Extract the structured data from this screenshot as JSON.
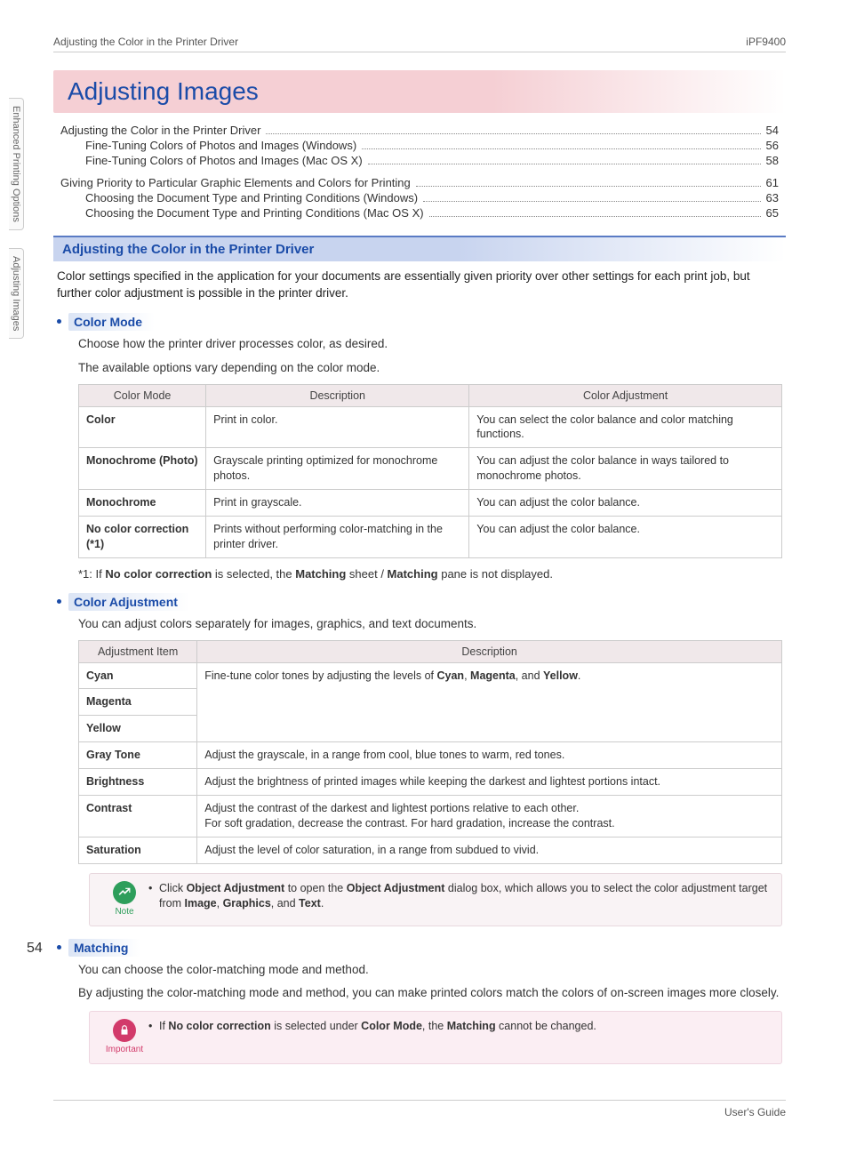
{
  "header": {
    "left": "Adjusting the Color in the Printer Driver",
    "right": "iPF9400"
  },
  "side_tabs": [
    "Enhanced Printing Options",
    "Adjusting Images"
  ],
  "page_number_side": "54",
  "main_title": "Adjusting Images",
  "toc": [
    {
      "group": [
        {
          "label": "Adjusting the Color in the Printer Driver",
          "page": "54",
          "indent": false
        },
        {
          "label": "Fine-Tuning Colors of Photos and Images (Windows)",
          "page": "56",
          "indent": true
        },
        {
          "label": "Fine-Tuning Colors of Photos and Images (Mac OS X)",
          "page": "58",
          "indent": true
        }
      ]
    },
    {
      "group": [
        {
          "label": "Giving Priority to Particular Graphic Elements and Colors for Printing",
          "page": "61",
          "indent": false
        },
        {
          "label": "Choosing the Document Type and Printing Conditions (Windows)",
          "page": "63",
          "indent": true
        },
        {
          "label": "Choosing the Document Type and Printing Conditions (Mac OS X)",
          "page": "65",
          "indent": true
        }
      ]
    }
  ],
  "section": {
    "heading": "Adjusting the Color in the Printer Driver",
    "intro": "Color settings specified in the application for your documents are essentially given priority over other settings for each print job, but further color adjustment is possible in the printer driver.",
    "color_mode": {
      "title": "Color Mode",
      "desc1": "Choose how the printer driver processes color, as desired.",
      "desc2": "The available options vary depending on the color mode.",
      "table": {
        "headers": [
          "Color Mode",
          "Description",
          "Color Adjustment"
        ],
        "rows": [
          [
            "Color",
            "Print in color.",
            "You can select the color balance and color matching functions."
          ],
          [
            "Monochrome (Photo)",
            "Grayscale printing optimized for monochrome photos.",
            "You can adjust the color balance in ways tailored to monochrome photos."
          ],
          [
            "Monochrome",
            "Print in grayscale.",
            "You can adjust the color balance."
          ],
          [
            "No color correction (*1)",
            "Prints without performing color-matching in the printer driver.",
            "You can adjust the color balance."
          ]
        ]
      },
      "footnote_prefix": "*1: If ",
      "footnote_b1": "No color correction",
      "footnote_mid": " is selected, the ",
      "footnote_b2": "Matching",
      "footnote_mid2": " sheet / ",
      "footnote_b3": "Matching",
      "footnote_end": " pane is not displayed."
    },
    "color_adjustment": {
      "title": "Color Adjustment",
      "desc": "You can adjust colors separately for images, graphics, and text documents.",
      "table": {
        "headers": [
          "Adjustment Item",
          "Description"
        ],
        "cyan": "Cyan",
        "magenta": "Magenta",
        "yellow": "Yellow",
        "cmy_desc_pre": "Fine-tune color tones by adjusting the levels of ",
        "cmy_b1": "Cyan",
        "cmy_b2": "Magenta",
        "cmy_b3": "Yellow",
        "rows_rest": [
          [
            "Gray Tone",
            "Adjust the grayscale, in a range from cool, blue tones to warm, red tones."
          ],
          [
            "Brightness",
            "Adjust the brightness of printed images while keeping the darkest and lightest portions intact."
          ],
          [
            "Contrast",
            "Adjust the contrast of the darkest and lightest portions relative to each other.\nFor soft gradation, decrease the contrast. For hard gradation, increase the contrast."
          ],
          [
            "Saturation",
            "Adjust the level of color saturation, in a range from subdued to vivid."
          ]
        ]
      },
      "note": {
        "label": "Note",
        "pre": "Click ",
        "b1": "Object Adjustment",
        "mid1": " to open the ",
        "b2": "Object Adjustment",
        "mid2": " dialog box, which allows you to select the color adjustment target from ",
        "b3": "Image",
        "b4": "Graphics",
        "b5": "Text",
        "end": "."
      }
    },
    "matching": {
      "title": "Matching",
      "desc1": "You can choose the color-matching mode and method.",
      "desc2": "By adjusting the color-matching mode and method, you can make printed colors match the colors of on-screen images more closely.",
      "important": {
        "label": "Important",
        "pre": "If ",
        "b1": "No color correction",
        "mid1": " is selected under ",
        "b2": "Color Mode",
        "mid2": ", the ",
        "b3": "Matching",
        "end": " cannot be changed."
      }
    }
  },
  "footer": "User's Guide"
}
